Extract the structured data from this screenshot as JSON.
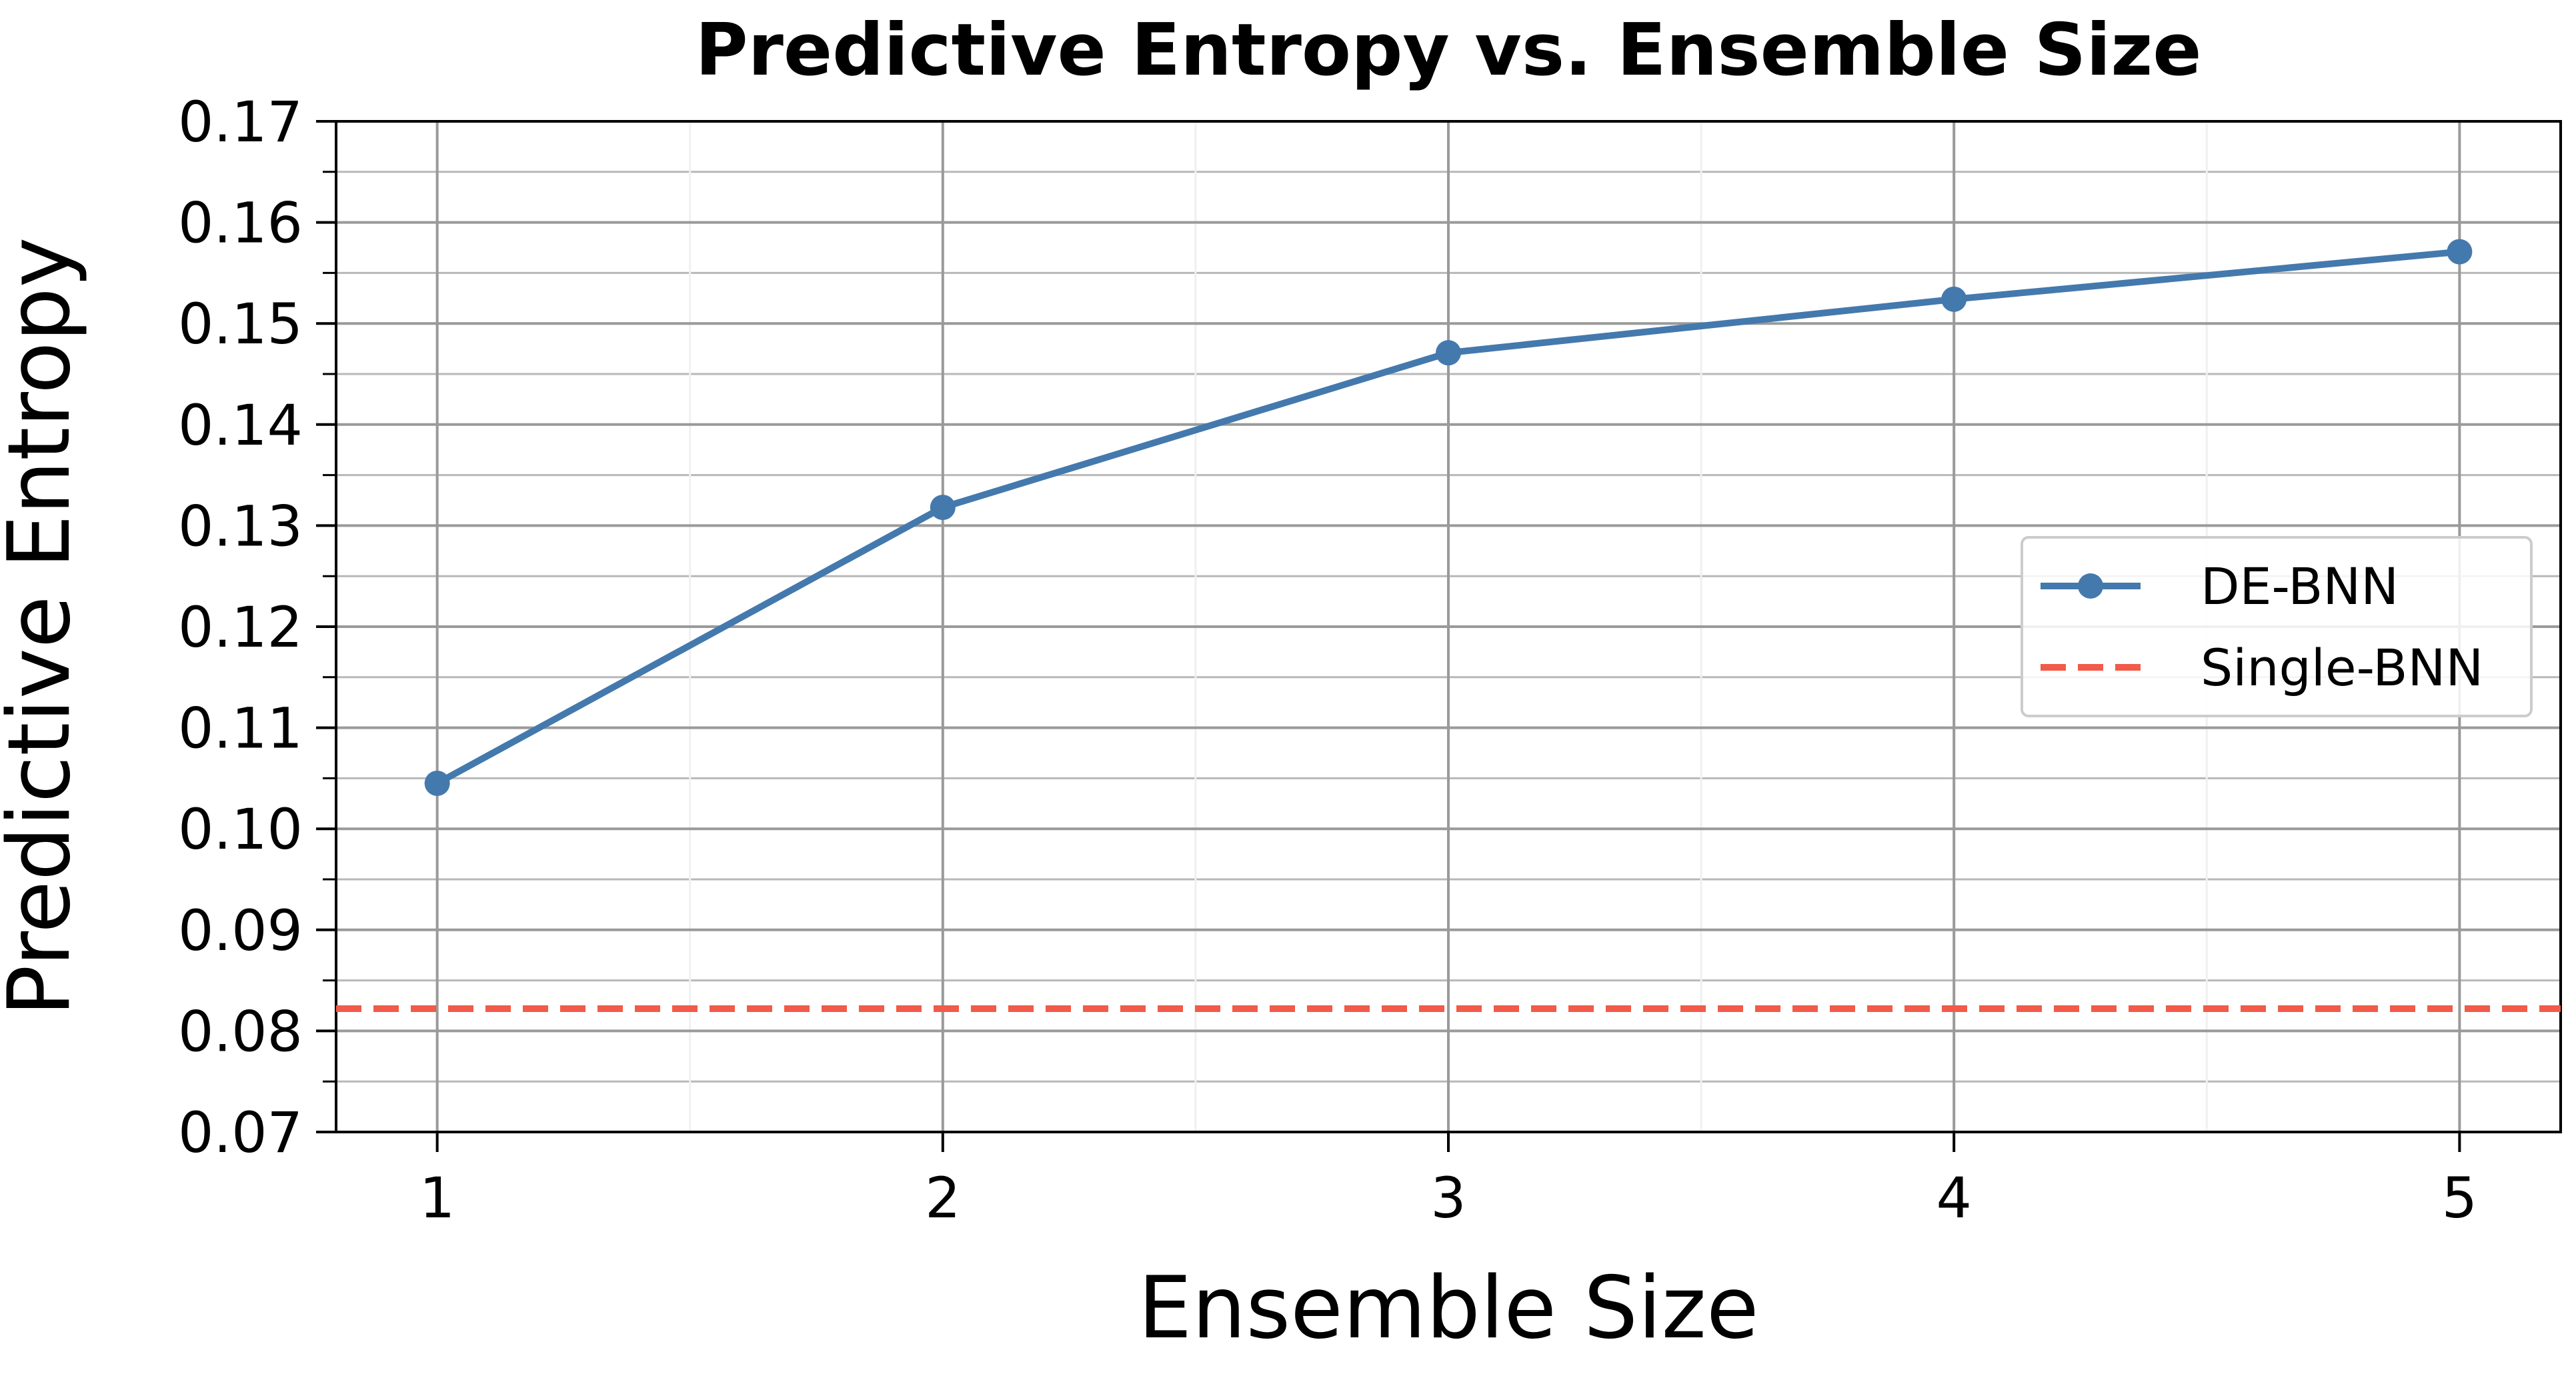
{
  "chart_data": {
    "type": "line",
    "title": "Predictive Entropy vs. Ensemble Size",
    "xlabel": "Ensemble Size",
    "ylabel": "Predictive Entropy",
    "x": [
      1,
      2,
      3,
      4,
      5
    ],
    "x_tick_labels": [
      "1",
      "2",
      "3",
      "4",
      "5"
    ],
    "xlim": [
      0.8,
      5.2
    ],
    "ylim": [
      0.07,
      0.17
    ],
    "y_ticks": [
      0.07,
      0.08,
      0.09,
      0.1,
      0.11,
      0.12,
      0.13,
      0.14,
      0.15,
      0.16,
      0.17
    ],
    "y_tick_labels": [
      "0.07",
      "0.08",
      "0.09",
      "0.10",
      "0.11",
      "0.12",
      "0.13",
      "0.14",
      "0.15",
      "0.16",
      "0.17"
    ],
    "grid": true,
    "legend_position": "center-right",
    "series": [
      {
        "name": "DE-BNN",
        "values": [
          0.1045,
          0.1318,
          0.1471,
          0.1524,
          0.1571
        ],
        "color": "#4479ad",
        "style": "solid",
        "marker": "circle"
      }
    ],
    "reference_lines": [
      {
        "name": "Single-BNN",
        "value": 0.0822,
        "color": "#f25a49",
        "style": "dashed"
      }
    ]
  }
}
